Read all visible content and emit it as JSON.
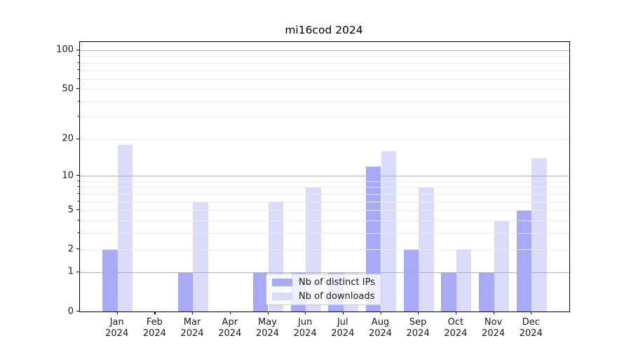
{
  "title": "mi16cod 2024",
  "legend": {
    "items": [
      {
        "label": "Nb of distinct IPs",
        "key": "distinct_ips"
      },
      {
        "label": "Nb of downloads",
        "key": "downloads"
      }
    ]
  },
  "colors": {
    "distinct_ips": "#a9aaf6",
    "downloads": "#d9dbf9",
    "grid_major": "#b0b0b0",
    "grid_minor": "#e9e9e9",
    "axis": "#000000",
    "text": "#1a1a1a",
    "legend_border": "#cccccc"
  },
  "y_axis": {
    "scale": "log10(1+v)",
    "ticks": [
      {
        "label": "100",
        "value": 100
      },
      {
        "label": "50",
        "value": 50
      },
      {
        "label": "20",
        "value": 20
      },
      {
        "label": "10",
        "value": 10
      },
      {
        "label": "5",
        "value": 5
      },
      {
        "label": "2",
        "value": 2
      },
      {
        "label": "1",
        "value": 1
      },
      {
        "label": "0",
        "value": 0
      }
    ]
  },
  "x_axis": {
    "categories": [
      {
        "month": "Jan",
        "year": "2024"
      },
      {
        "month": "Feb",
        "year": "2024"
      },
      {
        "month": "Mar",
        "year": "2024"
      },
      {
        "month": "Apr",
        "year": "2024"
      },
      {
        "month": "May",
        "year": "2024"
      },
      {
        "month": "Jun",
        "year": "2024"
      },
      {
        "month": "Jul",
        "year": "2024"
      },
      {
        "month": "Aug",
        "year": "2024"
      },
      {
        "month": "Sep",
        "year": "2024"
      },
      {
        "month": "Oct",
        "year": "2024"
      },
      {
        "month": "Nov",
        "year": "2024"
      },
      {
        "month": "Dec",
        "year": "2024"
      }
    ]
  },
  "chart_data": {
    "type": "bar",
    "title": "mi16cod 2024",
    "categories": [
      "Jan 2024",
      "Feb 2024",
      "Mar 2024",
      "Apr 2024",
      "May 2024",
      "Jun 2024",
      "Jul 2024",
      "Aug 2024",
      "Sep 2024",
      "Oct 2024",
      "Nov 2024",
      "Dec 2024"
    ],
    "series": [
      {
        "name": "Nb of distinct IPs",
        "values": [
          2,
          0,
          1,
          0,
          1,
          1,
          1,
          12,
          2,
          1,
          1,
          5
        ]
      },
      {
        "name": "Nb of downloads",
        "values": [
          18,
          0,
          6,
          0,
          6,
          8,
          1,
          16,
          8,
          2,
          4,
          14
        ]
      }
    ],
    "yscale": "log1p",
    "yticks": [
      0,
      1,
      2,
      5,
      10,
      20,
      50,
      100
    ],
    "ylim": [
      0,
      116
    ],
    "grid": true,
    "legend_position": "lower center"
  }
}
